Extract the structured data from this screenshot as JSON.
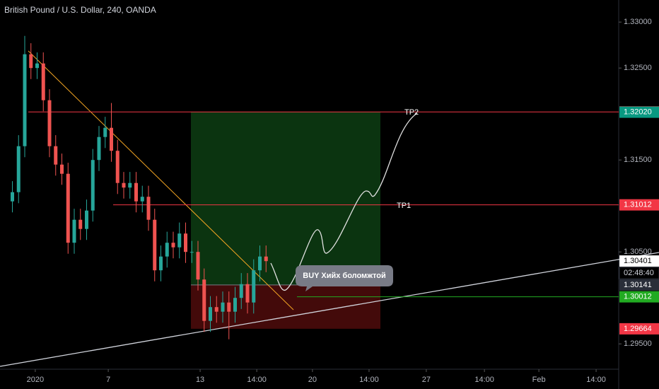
{
  "chart_data": {
    "type": "candlestick",
    "title": "British Pound / U.S. Dollar, 240, OANDA",
    "x": [
      4,
      6,
      8,
      10,
      12,
      14,
      16,
      18,
      20,
      22,
      24,
      26,
      28,
      30,
      32,
      34,
      36,
      38,
      40,
      42,
      44,
      46,
      48,
      50,
      52,
      54,
      56,
      58,
      60,
      62,
      64,
      66,
      68,
      70,
      72,
      74,
      76,
      78,
      80,
      82,
      84,
      86
    ],
    "open": [
      1.3105,
      1.3115,
      1.3165,
      1.3265,
      1.325,
      1.3255,
      1.3215,
      1.3165,
      1.3145,
      1.3135,
      1.306,
      1.3085,
      1.3075,
      1.3095,
      1.315,
      1.3175,
      1.3185,
      1.316,
      1.3125,
      1.312,
      1.3125,
      1.3105,
      1.311,
      1.3085,
      1.303,
      1.3045,
      1.306,
      1.3055,
      1.307,
      1.305,
      1.305,
      1.302,
      1.2975,
      1.299,
      1.2985,
      1.2995,
      1.2985,
      1.3,
      1.3015,
      1.2995,
      1.303,
      1.3045
    ],
    "close": [
      1.3115,
      1.3165,
      1.3265,
      1.325,
      1.3255,
      1.3215,
      1.3165,
      1.3145,
      1.3135,
      1.306,
      1.3085,
      1.3075,
      1.3095,
      1.315,
      1.3175,
      1.3185,
      1.316,
      1.3125,
      1.312,
      1.3125,
      1.3105,
      1.311,
      1.3085,
      1.303,
      1.3045,
      1.306,
      1.3055,
      1.307,
      1.305,
      1.305,
      1.302,
      1.2975,
      1.299,
      1.2985,
      1.2995,
      1.2985,
      1.3,
      1.3015,
      1.2995,
      1.303,
      1.3045,
      1.304
    ],
    "high": [
      1.3127,
      1.3177,
      1.3285,
      1.3277,
      1.3267,
      1.3267,
      1.3227,
      1.3177,
      1.3157,
      1.3147,
      1.3097,
      1.3097,
      1.3107,
      1.3162,
      1.3187,
      1.3197,
      1.3212,
      1.3172,
      1.3137,
      1.3137,
      1.3137,
      1.3122,
      1.3122,
      1.3097,
      1.3057,
      1.3072,
      1.3072,
      1.3082,
      1.3082,
      1.3062,
      1.3062,
      1.3032,
      1.3002,
      1.3002,
      1.3007,
      1.3007,
      1.3012,
      1.3027,
      1.3027,
      1.3042,
      1.3057,
      1.3057
    ],
    "low": [
      1.3093,
      1.3103,
      1.3153,
      1.3238,
      1.3238,
      1.3203,
      1.3153,
      1.3133,
      1.3123,
      1.3048,
      1.3048,
      1.3063,
      1.3063,
      1.3083,
      1.3138,
      1.3163,
      1.3148,
      1.3113,
      1.3108,
      1.3108,
      1.3093,
      1.3093,
      1.3073,
      1.3018,
      1.3018,
      1.3033,
      1.3043,
      1.3043,
      1.3038,
      1.3038,
      1.3008,
      1.2963,
      1.2963,
      1.2973,
      1.2973,
      1.2955,
      1.2973,
      1.2988,
      1.2983,
      1.2983,
      1.3018,
      1.3028
    ],
    "up_color": "#26a69a",
    "down_color": "#ef5350",
    "xlim": [
      0,
      200
    ],
    "xticks": [
      {
        "value": 11.4,
        "label": "2020"
      },
      {
        "value": 35,
        "label": "7"
      },
      {
        "value": 64.7,
        "label": "13"
      },
      {
        "value": 83,
        "label": "14:00"
      },
      {
        "value": 101,
        "label": "20"
      },
      {
        "value": 119.3,
        "label": "14:00"
      },
      {
        "value": 137.8,
        "label": "27"
      },
      {
        "value": 156.6,
        "label": "14:00"
      },
      {
        "value": 174.2,
        "label": "Feb"
      },
      {
        "value": 192.7,
        "label": "14:00"
      }
    ],
    "ylim": [
      1.2924,
      1.3324
    ],
    "yticks": [
      {
        "value": 1.33,
        "label": "1.33000"
      },
      {
        "value": 1.325,
        "label": "1.32500"
      },
      {
        "value": 1.315,
        "label": "1.31500"
      },
      {
        "value": 1.305,
        "label": "1.30500"
      },
      {
        "value": 1.295,
        "label": "1.29500"
      }
    ],
    "levels": [
      {
        "value": 1.32023,
        "color": "#f23645",
        "line": true
      },
      {
        "value": 1.31012,
        "color": "#f23645",
        "line": true
      },
      {
        "value": 1.30012,
        "color": "#22ab22",
        "line": true
      },
      {
        "value": 1.29664,
        "color": "#f23645",
        "line": false
      }
    ],
    "markers": [
      {
        "value": 1.3202,
        "label": "1.32020",
        "color": "#089981"
      },
      {
        "value": 1.30401,
        "color": "#ffffff"
      },
      {
        "value": 1.30141,
        "color": "#2a2e39"
      }
    ],
    "countdown": "02:48:40",
    "annotations": [
      "TP2",
      "TP1",
      "BUY Хийх боломжтой"
    ]
  }
}
